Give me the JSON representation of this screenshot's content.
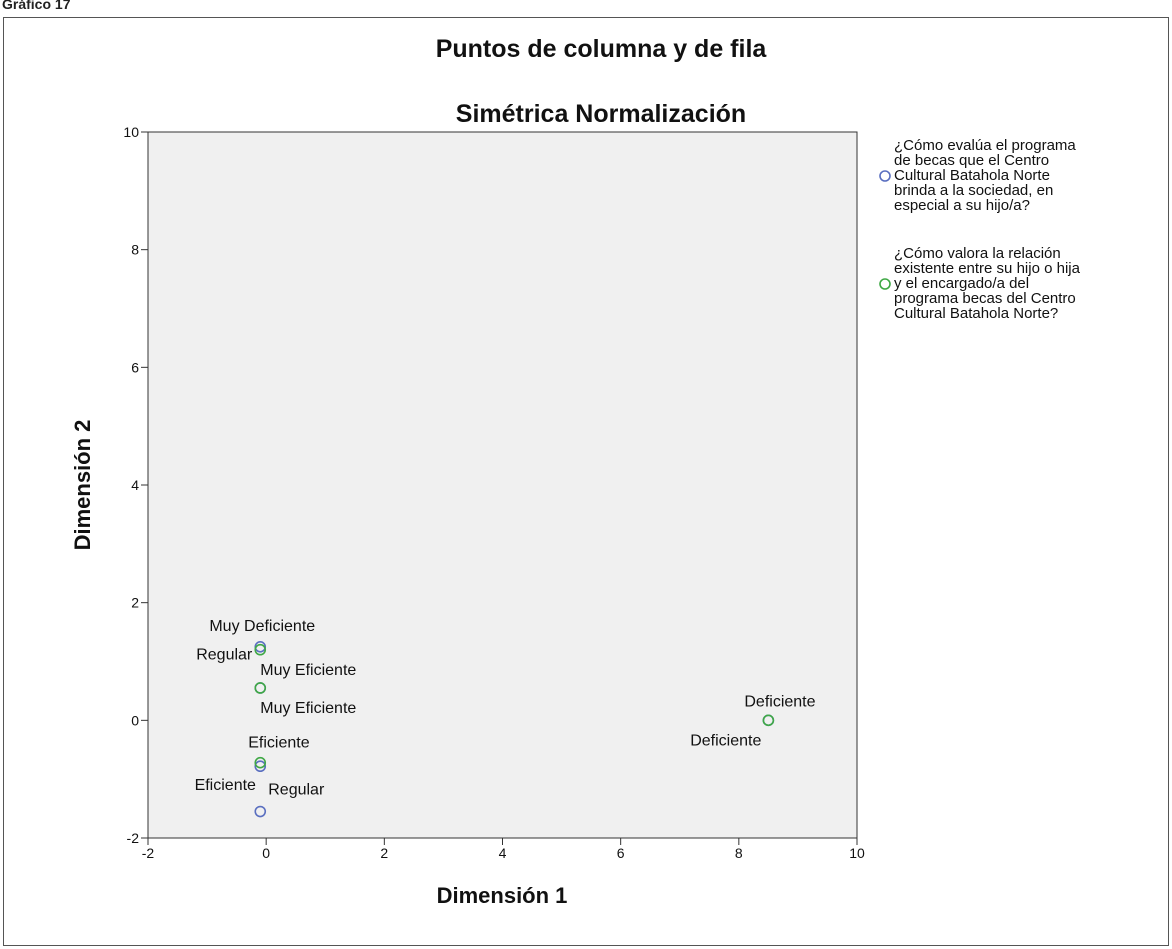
{
  "page": {
    "top_label": "Gráfico 17"
  },
  "chart_data": {
    "type": "scatter",
    "title": "Puntos de columna y de fila",
    "subtitle": "Simétrica Normalización",
    "xlabel": "Dimensión 1",
    "ylabel": "Dimensión 2",
    "xlim": [
      -2,
      10
    ],
    "ylim": [
      -2,
      10
    ],
    "xticks": [
      -2,
      0,
      2,
      4,
      6,
      8,
      10
    ],
    "yticks": [
      -2,
      0,
      2,
      4,
      6,
      8,
      10
    ],
    "grid": false,
    "legend_position": "right",
    "series": [
      {
        "name": "¿Cómo evalúa el programa de becas que el Centro Cultural Batahola Norte brinda a la sociedad, en especial a su hijo/a?",
        "legend_lines": [
          "¿Cómo evalúa el programa",
          "de becas que el Centro",
          "Cultural Batahola Norte",
          "brinda a la sociedad, en",
          "especial a su hijo/a?"
        ],
        "color": "#5a6fc0",
        "points": [
          {
            "label": "Muy Deficiente",
            "x": -0.1,
            "y": 1.25
          },
          {
            "label": "Muy Eficiente",
            "x": -0.1,
            "y": 0.55
          },
          {
            "label": "Eficiente",
            "x": -0.1,
            "y": -0.78
          },
          {
            "label": "Regular",
            "x": -0.1,
            "y": -1.55
          },
          {
            "label": "Deficiente",
            "x": 8.5,
            "y": 0.0
          }
        ]
      },
      {
        "name": "¿Cómo valora la relación existente entre su hijo o hija y el encargado/a del programa becas del Centro Cultural Batahola Norte?",
        "legend_lines": [
          "¿Cómo valora la relación",
          "existente entre su hijo o hija",
          "y el encargado/a del",
          "programa becas del Centro",
          "Cultural Batahola Norte?"
        ],
        "color": "#3fa845",
        "points": [
          {
            "label": "Regular",
            "x": -0.1,
            "y": 1.2
          },
          {
            "label": "Muy Eficiente",
            "x": -0.1,
            "y": 0.55
          },
          {
            "label": "Eficiente",
            "x": -0.1,
            "y": -0.72
          },
          {
            "label": "Deficiente",
            "x": 8.5,
            "y": 0.0
          }
        ]
      }
    ]
  }
}
